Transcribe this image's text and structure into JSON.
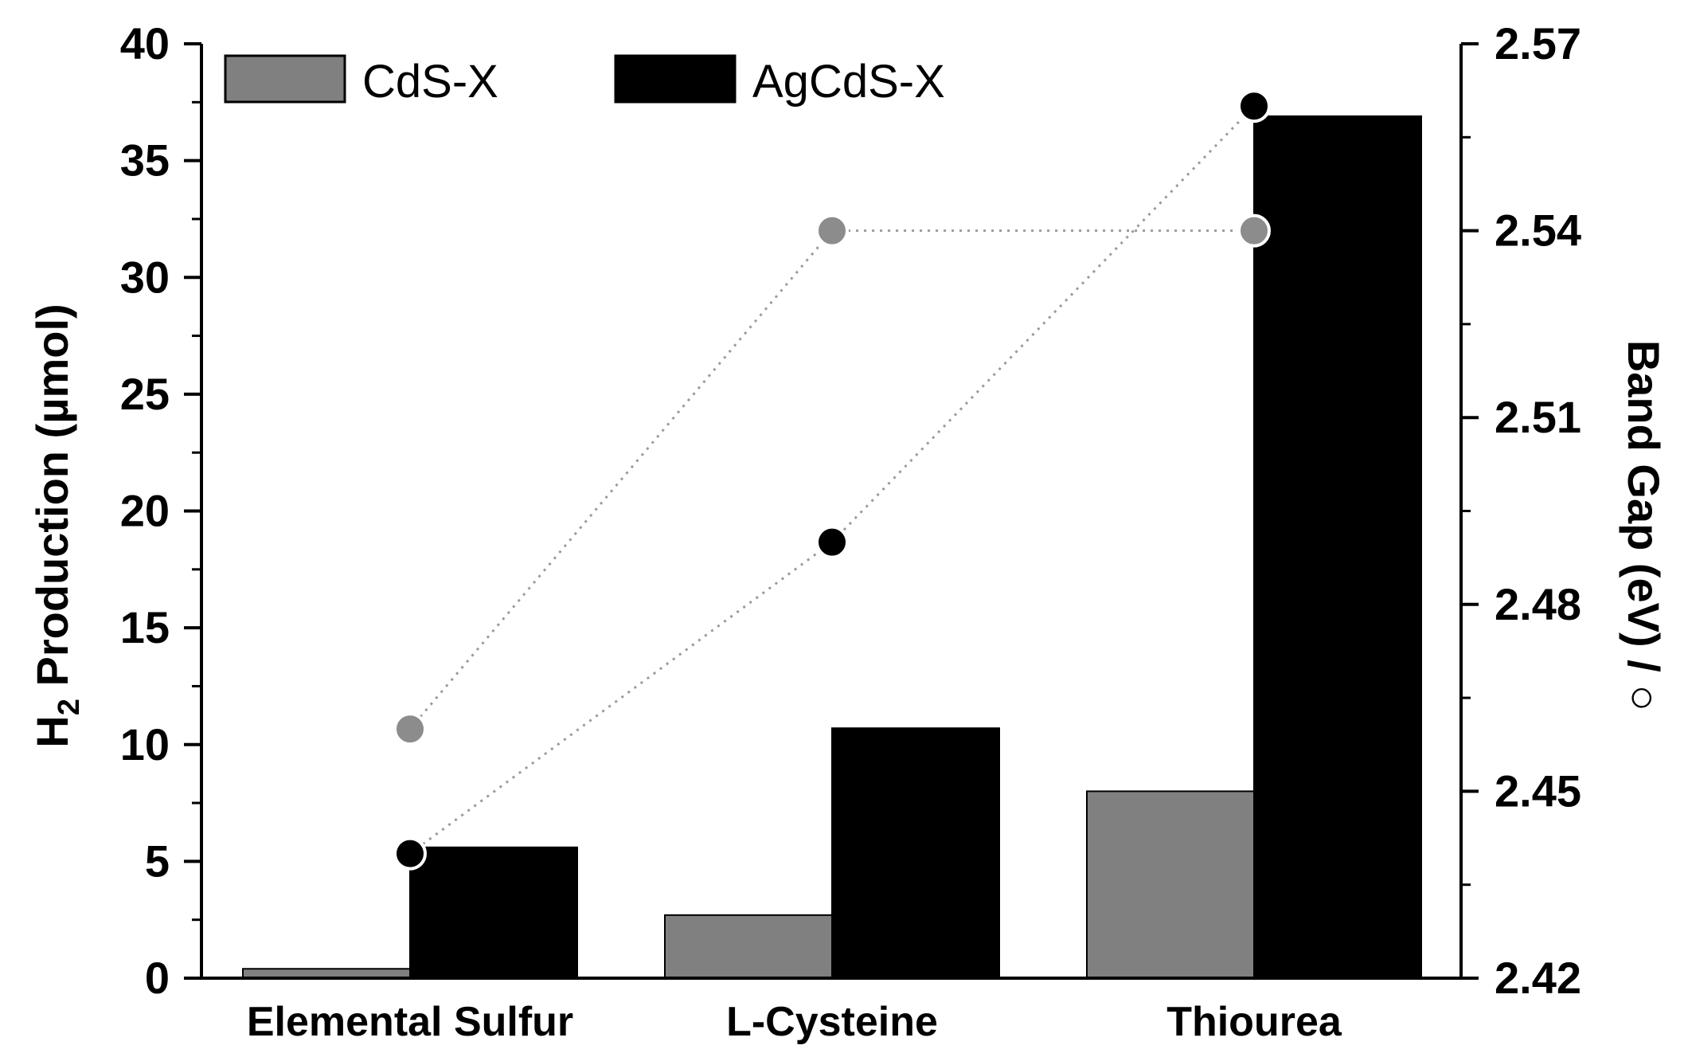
{
  "chart_data": {
    "type": "bar",
    "categories": [
      "Elemental Sulfur",
      "L-Cysteine",
      "Thiourea"
    ],
    "series": [
      {
        "name": "CdS-X",
        "axis": "left",
        "kind": "bar",
        "color": "#808080",
        "values": [
          0.4,
          2.7,
          8.0
        ]
      },
      {
        "name": "AgCdS-X",
        "axis": "left",
        "kind": "bar",
        "color": "#000000",
        "values": [
          5.6,
          10.7,
          36.9
        ]
      }
    ],
    "band_gap_series": [
      {
        "name": "CdS-X band gap",
        "axis": "right",
        "kind": "line-scatter",
        "color": "#8c8c8c",
        "values": [
          2.46,
          2.54,
          2.54
        ]
      },
      {
        "name": "AgCdS-X band gap",
        "axis": "right",
        "kind": "line-scatter",
        "color": "#000000",
        "values": [
          2.44,
          2.49,
          2.56
        ]
      }
    ],
    "ylabel_main": "H",
    "ylabel_sub": "2",
    "ylabel_rest": " Production (µmol)",
    "y2label": "Band Gap (eV) / ",
    "y2label_symbol": "○",
    "xlabel": "",
    "ylim": [
      0,
      40
    ],
    "y2lim": [
      2.42,
      2.57
    ],
    "yticks": [
      0,
      5,
      10,
      15,
      20,
      25,
      30,
      35,
      40
    ],
    "y2ticks": [
      "2.42",
      "2.45",
      "2.48",
      "2.51",
      "2.54",
      "2.57"
    ],
    "legend": [
      "CdS-X",
      "AgCdS-X"
    ],
    "legend_position": "top-left"
  }
}
